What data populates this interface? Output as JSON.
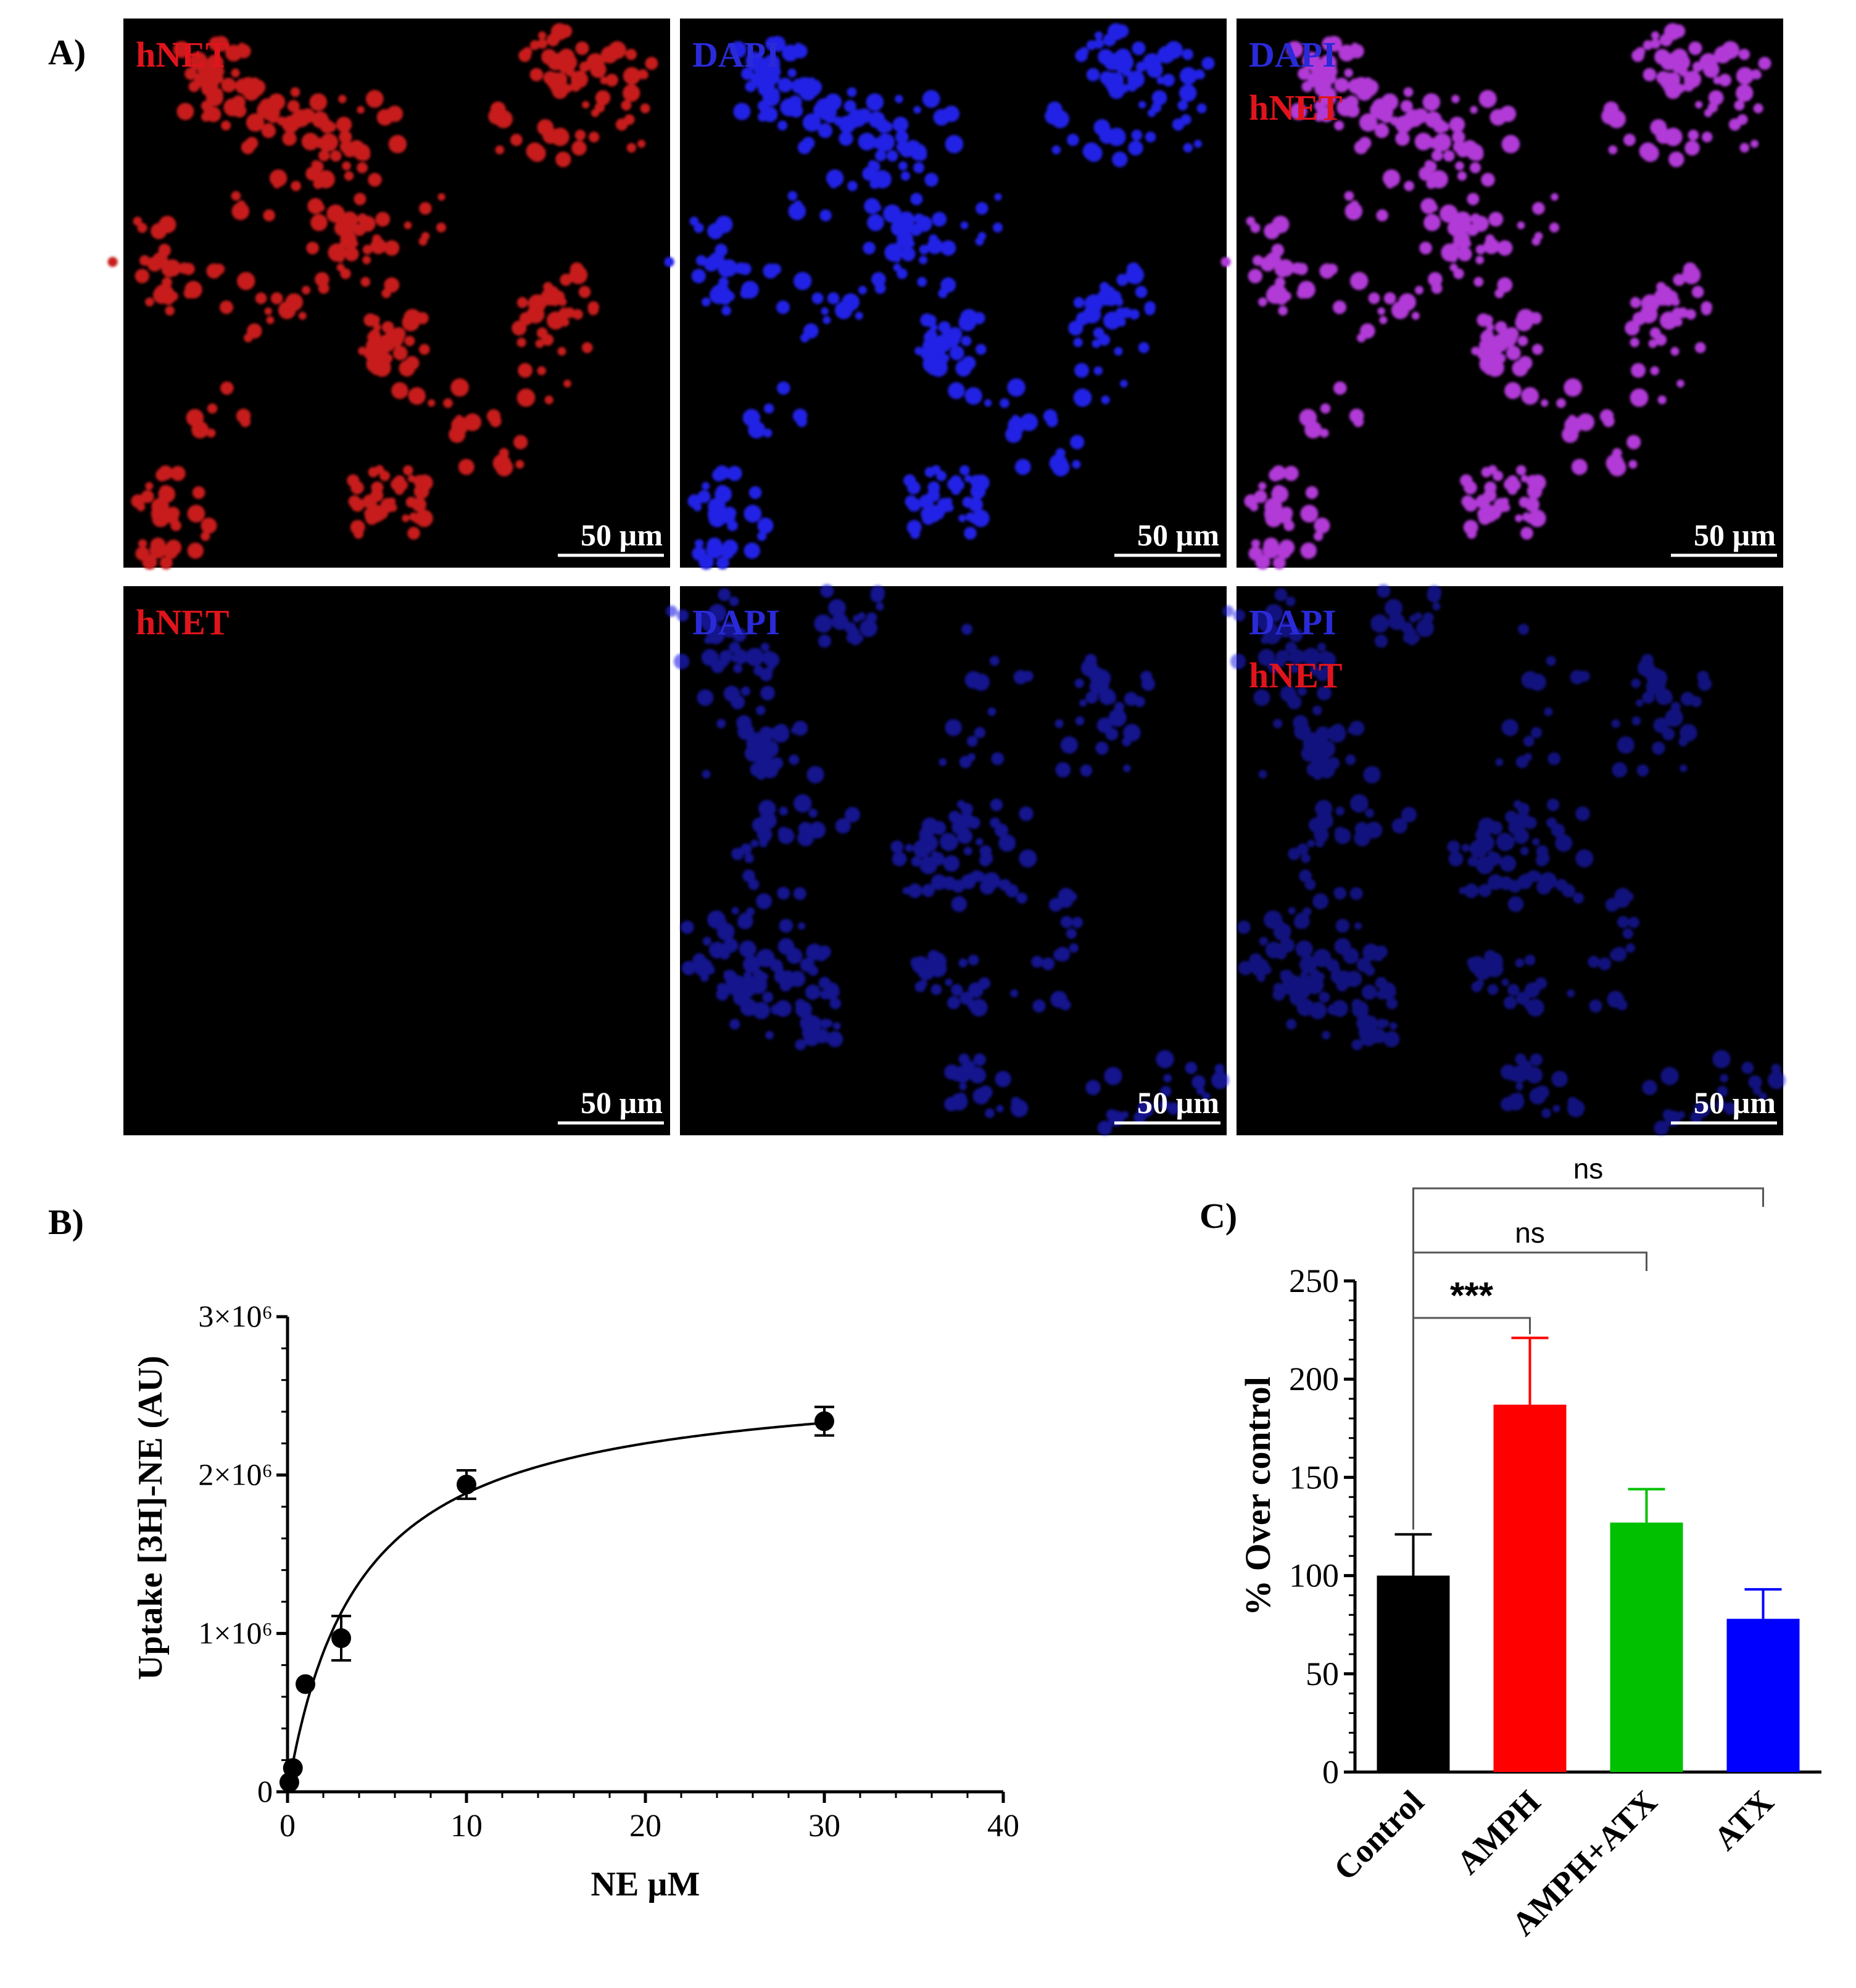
{
  "panels": {
    "a_tag": "A)",
    "b_tag": "B)",
    "c_tag": "C)"
  },
  "microscopy": {
    "rows": [
      {
        "tiles": [
          {
            "channel": "hnet",
            "labels": [
              "hNET"
            ],
            "scale_bar": "50 µm"
          },
          {
            "channel": "dapi",
            "labels": [
              "DAPI"
            ],
            "scale_bar": "50 µm"
          },
          {
            "channel": "merge",
            "labels": [
              "DAPI",
              "hNET"
            ],
            "scale_bar": "50 µm"
          }
        ]
      },
      {
        "tiles": [
          {
            "channel": "hnet-negative",
            "labels": [
              "hNET"
            ],
            "scale_bar": "50 µm"
          },
          {
            "channel": "dapi",
            "labels": [
              "DAPI"
            ],
            "scale_bar": "50 µm"
          },
          {
            "channel": "merge-negative",
            "labels": [
              "DAPI",
              "hNET"
            ],
            "scale_bar": "50 µm"
          }
        ]
      }
    ],
    "label_colors": {
      "hNET": "#e0141c",
      "DAPI": "#2a2ad8"
    },
    "stain_colors": {
      "hnet": "#c81a1a",
      "dapi": "#2424e6",
      "merge": "#b23ad8"
    }
  },
  "chart_data": [
    {
      "panel": "B",
      "type": "scatter",
      "xlabel": "NE µM",
      "ylabel": "Uptake [3H]-NE (AU)",
      "xlim": [
        0,
        40
      ],
      "ylim": [
        0,
        3000000
      ],
      "x_ticks": [
        "0",
        "10",
        "20",
        "30",
        "40"
      ],
      "y_ticks": [
        "0",
        "1×10⁶",
        "2×10⁶",
        "3×10⁶"
      ],
      "points": [
        {
          "x": 0.1,
          "y": 60000,
          "err": 0
        },
        {
          "x": 0.3,
          "y": 150000,
          "err": 0
        },
        {
          "x": 1,
          "y": 680000,
          "err": 0
        },
        {
          "x": 3,
          "y": 970000,
          "err": 140000
        },
        {
          "x": 10,
          "y": 1940000,
          "err": 90000
        },
        {
          "x": 30,
          "y": 2340000,
          "err": 90000
        }
      ],
      "fit": {
        "model": "Michaelis-Menten",
        "vmax": 2640000,
        "km": 4.0
      }
    },
    {
      "panel": "C",
      "type": "bar",
      "ylabel": "% Over control",
      "ylim": [
        0,
        250
      ],
      "y_ticks": [
        "0",
        "50",
        "100",
        "150",
        "200",
        "250"
      ],
      "categories": [
        "Control",
        "AMPH",
        "AMPH+ATX",
        "ATX"
      ],
      "values": [
        100,
        187,
        127,
        78
      ],
      "errors": [
        21,
        34,
        17,
        15
      ],
      "colors": [
        "#000000",
        "#ff0000",
        "#00c000",
        "#0000ff"
      ],
      "significance": [
        {
          "from": "Control",
          "to": "ATX",
          "label": "ns"
        },
        {
          "from": "Control",
          "to": "AMPH+ATX",
          "label": "ns"
        },
        {
          "from": "Control",
          "to": "AMPH",
          "label": "***"
        }
      ]
    }
  ]
}
